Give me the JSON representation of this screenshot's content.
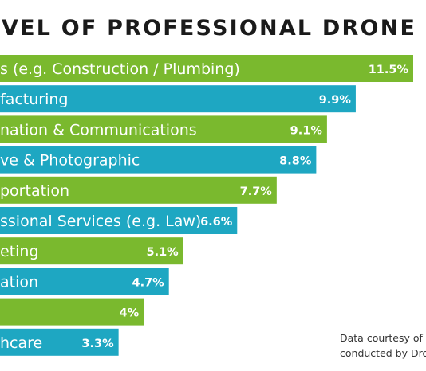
{
  "chart_data": {
    "type": "bar",
    "orientation": "horizontal",
    "title": "VEL OF PROFESSIONAL DRONE USA",
    "categories": [
      "s (e.g. Construction / Plumbing)",
      "facturing",
      "nation & Communications",
      "ve & Photographic",
      "portation",
      "ssional Services (e.g. Law)",
      "eting",
      "ation",
      "",
      "hcare"
    ],
    "values": [
      11.5,
      9.9,
      9.1,
      8.8,
      7.7,
      6.6,
      5.1,
      4.7,
      4,
      3.3
    ],
    "value_labels": [
      "11.5%",
      "9.9%",
      "9.1%",
      "8.8%",
      "7.7%",
      "6.6%",
      "5.1%",
      "4.7%",
      "4%",
      "3.3%"
    ],
    "bar_colors": [
      "#7ab92e",
      "#1ea7c2",
      "#7ab92e",
      "#1ea7c2",
      "#7ab92e",
      "#1ea7c2",
      "#7ab92e",
      "#1ea7c2",
      "#7ab92e",
      "#1ea7c2"
    ],
    "xlim": [
      0,
      11.5
    ],
    "grid": false,
    "legend": "none"
  },
  "source_note": {
    "line1": "Data courtesy of",
    "line2": "conducted by Dro"
  },
  "colors": {
    "title": "#1a1a1a",
    "bar_text": "#ffffff",
    "note_text": "#333333",
    "background": "#ffffff"
  }
}
